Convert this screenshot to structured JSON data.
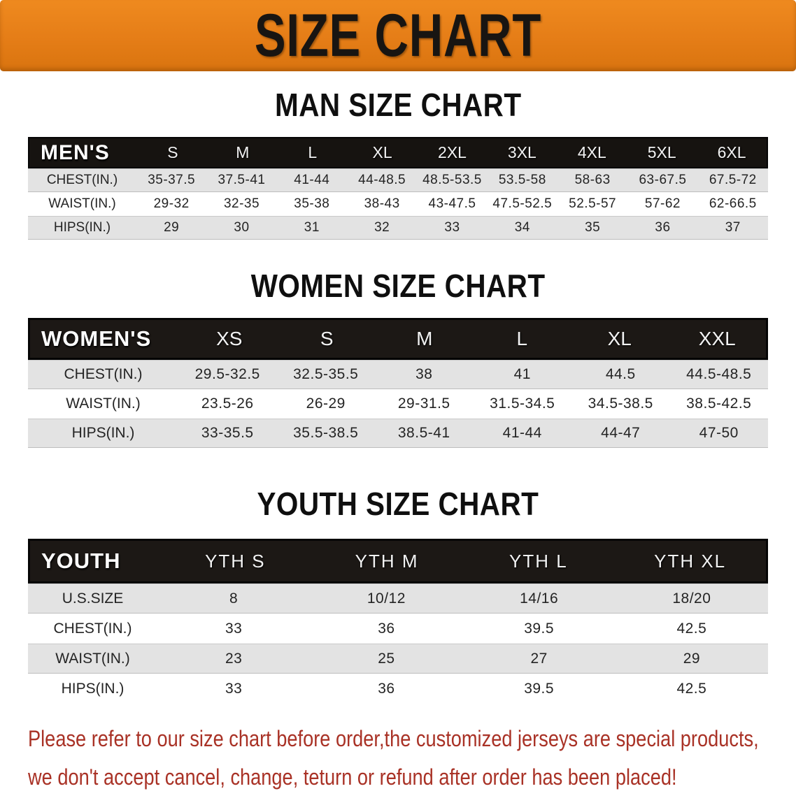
{
  "banner": {
    "title": "SIZE CHART"
  },
  "colors": {
    "banner_bg": "#e57d17",
    "header_bar": "#161310",
    "row_alt_gray": "#e3e3e3",
    "disclaimer_text": "#a93226"
  },
  "sections": [
    {
      "heading": "MAN SIZE CHART",
      "table": {
        "header_label": "MEN'S",
        "columns": [
          "S",
          "M",
          "L",
          "XL",
          "2XL",
          "3XL",
          "4XL",
          "5XL",
          "6XL"
        ],
        "rows": [
          {
            "label": "CHEST(IN.)",
            "values": [
              "35-37.5",
              "37.5-41",
              "41-44",
              "44-48.5",
              "48.5-53.5",
              "53.5-58",
              "58-63",
              "63-67.5",
              "67.5-72"
            ]
          },
          {
            "label": "WAIST(IN.)",
            "values": [
              "29-32",
              "32-35",
              "35-38",
              "38-43",
              "43-47.5",
              "47.5-52.5",
              "52.5-57",
              "57-62",
              "62-66.5"
            ]
          },
          {
            "label": "HIPS(IN.)",
            "values": [
              "29",
              "30",
              "31",
              "32",
              "33",
              "34",
              "35",
              "36",
              "37"
            ]
          }
        ]
      }
    },
    {
      "heading": "WOMEN SIZE CHART",
      "table": {
        "header_label": "WOMEN'S",
        "columns": [
          "XS",
          "S",
          "M",
          "L",
          "XL",
          "XXL"
        ],
        "rows": [
          {
            "label": "CHEST(IN.)",
            "values": [
              "29.5-32.5",
              "32.5-35.5",
              "38",
              "41",
              "44.5",
              "44.5-48.5"
            ]
          },
          {
            "label": "WAIST(IN.)",
            "values": [
              "23.5-26",
              "26-29",
              "29-31.5",
              "31.5-34.5",
              "34.5-38.5",
              "38.5-42.5"
            ]
          },
          {
            "label": "HIPS(IN.)",
            "values": [
              "33-35.5",
              "35.5-38.5",
              "38.5-41",
              "41-44",
              "44-47",
              "47-50"
            ]
          }
        ]
      }
    },
    {
      "heading": "YOUTH SIZE CHART",
      "table": {
        "header_label": "YOUTH",
        "columns": [
          "YTH S",
          "YTH M",
          "YTH L",
          "YTH XL"
        ],
        "rows": [
          {
            "label": "U.S.SIZE",
            "values": [
              "8",
              "10/12",
              "14/16",
              "18/20"
            ]
          },
          {
            "label": "CHEST(IN.)",
            "values": [
              "33",
              "36",
              "39.5",
              "42.5"
            ]
          },
          {
            "label": "WAIST(IN.)",
            "values": [
              "23",
              "25",
              "27",
              "29"
            ]
          },
          {
            "label": "HIPS(IN.)",
            "values": [
              "33",
              "36",
              "39.5",
              "42.5"
            ]
          }
        ]
      }
    }
  ],
  "disclaimer": {
    "line1": "Please refer to our size chart before order,the customized jerseys are special products,",
    "line2": "we don't accept cancel, change, teturn or refund after order has been placed!"
  }
}
